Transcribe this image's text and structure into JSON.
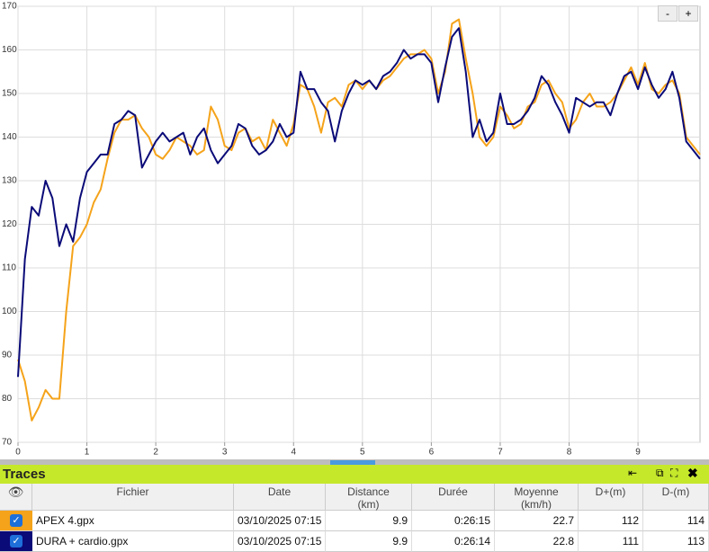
{
  "chart_data": {
    "type": "line",
    "x": [
      0,
      0.1,
      0.2,
      0.3,
      0.4,
      0.5,
      0.6,
      0.7,
      0.8,
      0.9,
      1,
      1.1,
      1.2,
      1.3,
      1.4,
      1.5,
      1.6,
      1.7,
      1.8,
      1.9,
      2,
      2.1,
      2.2,
      2.3,
      2.4,
      2.5,
      2.6,
      2.7,
      2.8,
      2.9,
      3,
      3.1,
      3.2,
      3.3,
      3.4,
      3.5,
      3.6,
      3.7,
      3.8,
      3.9,
      4,
      4.1,
      4.2,
      4.3,
      4.4,
      4.5,
      4.6,
      4.7,
      4.8,
      4.9,
      5,
      5.1,
      5.2,
      5.3,
      5.4,
      5.5,
      5.6,
      5.7,
      5.8,
      5.9,
      6,
      6.1,
      6.2,
      6.3,
      6.4,
      6.5,
      6.6,
      6.7,
      6.8,
      6.9,
      7,
      7.1,
      7.2,
      7.3,
      7.4,
      7.5,
      7.6,
      7.7,
      7.8,
      7.9,
      8,
      8.1,
      8.2,
      8.3,
      8.4,
      8.5,
      8.6,
      8.7,
      8.8,
      8.9,
      9,
      9.1,
      9.2,
      9.3,
      9.4,
      9.5,
      9.6,
      9.7,
      9.8,
      9.9
    ],
    "series": [
      {
        "name": "APEX 4.gpx",
        "color": "#f5a31a",
        "values": [
          89,
          84,
          75,
          78,
          82,
          80,
          80,
          100,
          115,
          117,
          120,
          125,
          128,
          135,
          141,
          144,
          144,
          145,
          142,
          140,
          136,
          135,
          137,
          140,
          139,
          138,
          136,
          137,
          147,
          144,
          138,
          137,
          141,
          142,
          139,
          140,
          137,
          144,
          141,
          138,
          143,
          152,
          151,
          147,
          141,
          148,
          149,
          147,
          152,
          153,
          151,
          153,
          151,
          153,
          154,
          156,
          158,
          159,
          159,
          160,
          158,
          150,
          155,
          166,
          167,
          158,
          150,
          140,
          138,
          140,
          147,
          145,
          142,
          143,
          147,
          148,
          152,
          153,
          150,
          148,
          142,
          144,
          148,
          150,
          147,
          147,
          148,
          150,
          153,
          156,
          152,
          157,
          151,
          150,
          152,
          153,
          150,
          140,
          138,
          136
        ]
      },
      {
        "name": "DURA + cardio.gpx",
        "color": "#0a0a78",
        "values": [
          85,
          112,
          124,
          122,
          130,
          126,
          115,
          120,
          116,
          126,
          132,
          134,
          136,
          136,
          143,
          144,
          146,
          145,
          133,
          136,
          139,
          141,
          139,
          140,
          141,
          136,
          140,
          142,
          137,
          134,
          136,
          138,
          143,
          142,
          138,
          136,
          137,
          139,
          143,
          140,
          141,
          155,
          151,
          151,
          148,
          146,
          139,
          146,
          150,
          153,
          152,
          153,
          151,
          154,
          155,
          157,
          160,
          158,
          159,
          159,
          157,
          148,
          156,
          163,
          165,
          155,
          140,
          144,
          139,
          141,
          150,
          143,
          143,
          144,
          146,
          149,
          154,
          152,
          148,
          145,
          141,
          149,
          148,
          147,
          148,
          148,
          145,
          150,
          154,
          155,
          151,
          156,
          152,
          149,
          151,
          155,
          149,
          139,
          137,
          135
        ]
      }
    ],
    "xlim": [
      0,
      9.9
    ],
    "ylim": [
      70,
      170
    ],
    "xticks": [
      0,
      1,
      2,
      3,
      4,
      5,
      6,
      7,
      8,
      9
    ],
    "yticks": [
      70,
      80,
      90,
      100,
      110,
      120,
      130,
      140,
      150,
      160,
      170
    ],
    "grid": true
  },
  "zoom_buttons": [
    "-",
    "+"
  ],
  "panel_title": "Traces",
  "table": {
    "columns": [
      "Fichier",
      "Date",
      "Distance\n(km)",
      "Durée",
      "Moyenne\n(km/h)",
      "D+(m)",
      "D-(m)"
    ],
    "rows": [
      [
        "APEX 4.gpx",
        "03/10/2025 07:15",
        9.9,
        "0:26:15",
        22.7,
        112,
        114
      ],
      [
        "DURA + cardio.gpx",
        "03/10/2025 07:15",
        9.9,
        "0:26:14",
        22.8,
        111,
        113
      ]
    ]
  }
}
